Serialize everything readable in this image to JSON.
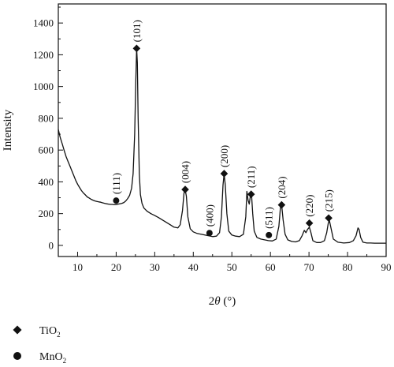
{
  "chart_data": {
    "type": "line",
    "xlabel_parts": [
      "2",
      "θ",
      " (°)"
    ],
    "ylabel": "Intensity",
    "xlim": [
      5,
      90
    ],
    "ylim": [
      -70,
      1520
    ],
    "x_ticks": [
      10,
      20,
      30,
      40,
      50,
      60,
      70,
      80,
      90
    ],
    "y_ticks": [
      0,
      200,
      400,
      600,
      800,
      1000,
      1200,
      1400
    ],
    "grid": false,
    "legend_position": "bottom-left",
    "series": [
      {
        "key": "pattern",
        "color": "#111111",
        "x": [
          5,
          5.5,
          6,
          6.5,
          7,
          7.5,
          8,
          8.5,
          9,
          9.5,
          10,
          10.5,
          11,
          11.5,
          12,
          12.5,
          13,
          13.5,
          14,
          14.5,
          15,
          15.5,
          16,
          16.5,
          17,
          17.5,
          18,
          18.5,
          19,
          19.5,
          20,
          20.5,
          21,
          21.5,
          22,
          22.5,
          23,
          23.5,
          24,
          24.4,
          24.8,
          25.1,
          25.3,
          25.5,
          25.7,
          26,
          26.3,
          26.7,
          27.2,
          28,
          29,
          30,
          31,
          32,
          33,
          34,
          35,
          36,
          36.6,
          37.2,
          37.6,
          37.9,
          38.2,
          38.6,
          39.2,
          40,
          41,
          42,
          43,
          44,
          45,
          46,
          46.8,
          47.3,
          47.7,
          48,
          48.3,
          48.7,
          49.2,
          50,
          51,
          52,
          53,
          53.6,
          53.9,
          54.2,
          54.5,
          54.8,
          55.1,
          55.4,
          55.8,
          56.5,
          57.5,
          58.5,
          59.5,
          60.5,
          61.5,
          62.2,
          62.6,
          62.9,
          63.3,
          63.8,
          64.5,
          65.5,
          66.5,
          67.5,
          68.2,
          68.8,
          69.2,
          69.6,
          70.1,
          70.5,
          71,
          72,
          73,
          74,
          74.6,
          75,
          75.3,
          75.7,
          76.3,
          77.5,
          79,
          80.5,
          81.5,
          82.2,
          82.7,
          83,
          83.4,
          84,
          85,
          86,
          87,
          88,
          89,
          90
        ],
        "y": [
          730,
          680,
          640,
          600,
          560,
          530,
          500,
          470,
          440,
          410,
          385,
          365,
          345,
          330,
          318,
          305,
          298,
          290,
          285,
          280,
          277,
          274,
          272,
          268,
          265,
          262,
          260,
          258,
          258,
          256,
          257,
          260,
          262,
          265,
          270,
          280,
          295,
          315,
          360,
          450,
          700,
          1050,
          1240,
          1150,
          800,
          450,
          320,
          265,
          235,
          215,
          200,
          188,
          175,
          160,
          145,
          130,
          115,
          110,
          130,
          220,
          330,
          350,
          310,
          180,
          105,
          85,
          75,
          70,
          65,
          60,
          55,
          58,
          80,
          180,
          380,
          450,
          380,
          200,
          90,
          65,
          58,
          55,
          70,
          180,
          340,
          285,
          260,
          310,
          320,
          200,
          90,
          50,
          40,
          35,
          30,
          28,
          40,
          120,
          240,
          255,
          160,
          70,
          35,
          25,
          22,
          30,
          60,
          95,
          80,
          100,
          115,
          80,
          30,
          18,
          18,
          30,
          80,
          140,
          155,
          110,
          40,
          20,
          15,
          18,
          30,
          60,
          110,
          100,
          50,
          20,
          15,
          15,
          14,
          14,
          14,
          14
        ]
      }
    ],
    "peaks": [
      {
        "label": "(101)",
        "phase": "TiO2",
        "x": 25.3,
        "y": 1240
      },
      {
        "label": "(004)",
        "phase": "TiO2",
        "x": 37.9,
        "y": 352
      },
      {
        "label": "(200)",
        "phase": "TiO2",
        "x": 48.0,
        "y": 452
      },
      {
        "label": "(211)",
        "phase": "TiO2",
        "x": 55.0,
        "y": 322
      },
      {
        "label": "(204)",
        "phase": "TiO2",
        "x": 62.9,
        "y": 255
      },
      {
        "label": "(220)",
        "phase": "TiO2",
        "x": 70.1,
        "y": 140
      },
      {
        "label": "(215)",
        "phase": "TiO2",
        "x": 75.1,
        "y": 172
      },
      {
        "label": "(111)",
        "phase": "MnO2",
        "x": 20.0,
        "y": 282
      },
      {
        "label": "(400)",
        "phase": "MnO2",
        "x": 44.2,
        "y": 78
      },
      {
        "label": "(511)",
        "phase": "MnO2",
        "x": 59.6,
        "y": 65
      }
    ],
    "legend": [
      {
        "phase": "TiO2",
        "marker": "diamond-icon",
        "text": "TiO",
        "sub": "2"
      },
      {
        "phase": "MnO2",
        "marker": "circle-icon",
        "text": "MnO",
        "sub": "2"
      }
    ]
  }
}
